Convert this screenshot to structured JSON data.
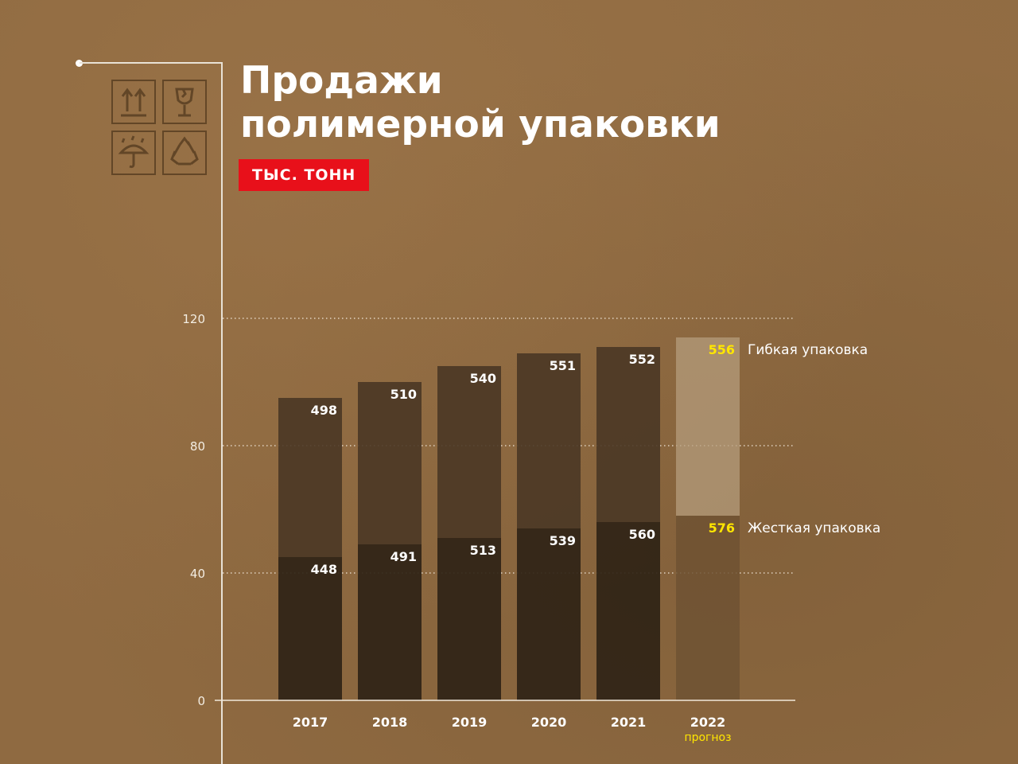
{
  "title_line1": "Продажи",
  "title_line2": "полимерной упаковки",
  "unit_badge": "ТЫС. ТОНН",
  "icons": [
    "this-way-up-icon",
    "fragile-glass-icon",
    "keep-dry-umbrella-icon",
    "recycle-icon"
  ],
  "colors": {
    "background": "#8f6a41",
    "rigid_bar": "#2f2316",
    "flexible_bar": "#4a3725",
    "forecast_rigid_bar": "#6e5233",
    "forecast_flexible_bar": "#b49c7c",
    "badge": "#e8101a",
    "forecast_highlight": "#ffe600"
  },
  "chart_data": {
    "type": "bar",
    "stacked": true,
    "categories": [
      "2017",
      "2018",
      "2019",
      "2020",
      "2021",
      "2022"
    ],
    "category_notes": [
      "",
      "",
      "",
      "",
      "",
      "прогноз"
    ],
    "forecast_index": 5,
    "y_ticks": [
      0,
      40,
      80,
      120
    ],
    "ylim": [
      0,
      120
    ],
    "grid": "dotted",
    "series": [
      {
        "name": "Жесткая упаковка",
        "bar_heights": [
          45,
          49,
          51,
          54,
          56,
          58
        ],
        "labels": [
          "448",
          "491",
          "513",
          "539",
          "560",
          "576"
        ]
      },
      {
        "name": "Гибкая упаковка",
        "bar_heights": [
          50,
          51,
          54,
          55,
          55,
          56
        ],
        "labels": [
          "498",
          "510",
          "540",
          "551",
          "552",
          "556"
        ]
      }
    ]
  }
}
